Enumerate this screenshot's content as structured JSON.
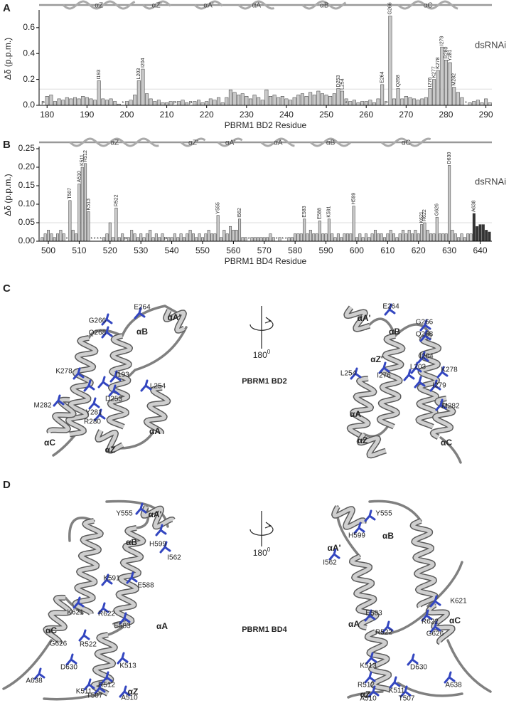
{
  "chart_data": [
    {
      "type": "bar",
      "panel": "A",
      "x_label": "PBRM1 BD2 Residue",
      "y_label": "Δδ (p.p.m.)",
      "x": [
        179,
        180,
        181,
        182,
        183,
        184,
        185,
        186,
        187,
        188,
        189,
        190,
        191,
        192,
        193,
        194,
        195,
        196,
        197,
        198,
        199,
        200,
        201,
        202,
        203,
        204,
        205,
        206,
        207,
        208,
        209,
        210,
        211,
        212,
        213,
        214,
        215,
        216,
        217,
        218,
        219,
        220,
        221,
        222,
        223,
        224,
        225,
        226,
        227,
        228,
        229,
        230,
        231,
        232,
        233,
        234,
        235,
        236,
        237,
        238,
        239,
        240,
        241,
        242,
        243,
        244,
        245,
        246,
        247,
        248,
        249,
        250,
        251,
        252,
        253,
        254,
        255,
        256,
        257,
        258,
        259,
        260,
        261,
        262,
        263,
        264,
        265,
        266,
        267,
        268,
        269,
        270,
        271,
        272,
        273,
        274,
        275,
        276,
        277,
        278,
        279,
        280,
        281,
        282,
        283,
        284,
        285,
        286,
        287,
        288,
        289,
        290,
        291
      ],
      "series": [
        {
          "name": "dsRNAi",
          "color": "#c8c8c8",
          "values": [
            0,
            0.07,
            0.08,
            0.03,
            0.05,
            0.04,
            0.06,
            0.05,
            0.06,
            0.05,
            0.07,
            0.06,
            0.05,
            0.04,
            0.19,
            0.05,
            0.04,
            0.05,
            0.03,
            0.01,
            0,
            0.03,
            0.04,
            0.08,
            0.19,
            0.28,
            0.09,
            0.05,
            0.03,
            0.04,
            0.02,
            0.02,
            0.03,
            0,
            0.03,
            0.04,
            0.02,
            0,
            0.03,
            0.04,
            0.02,
            0.03,
            0.05,
            0.04,
            0.06,
            0.02,
            0.06,
            0.12,
            0.1,
            0.08,
            0.09,
            0.07,
            0.05,
            0.08,
            0.06,
            0.04,
            0.12,
            0.07,
            0.08,
            0.06,
            0.07,
            0.05,
            0.04,
            0.06,
            0.08,
            0.09,
            0.07,
            0.1,
            0.08,
            0.11,
            0.09,
            0.08,
            0.07,
            0.09,
            0.13,
            0.11,
            0.05,
            0.03,
            0.04,
            0.02,
            0.03,
            0.03,
            0.04,
            0.02,
            0.05,
            0.16,
            0,
            0.69,
            0.05,
            0.13,
            0.05,
            0.07,
            0.06,
            0.05,
            0.04,
            0.05,
            0.06,
            0.13,
            0.2,
            0.27,
            0.45,
            0.35,
            0.33,
            0.14,
            0.1,
            0.06,
            0,
            0.02,
            0.03,
            0.04,
            0.02,
            0.05,
            0.02
          ]
        }
      ],
      "xlim": [
        178,
        291.5
      ],
      "xticks": [
        180,
        190,
        200,
        210,
        220,
        230,
        240,
        250,
        260,
        270,
        280,
        290
      ],
      "ylim": [
        0,
        0.72
      ],
      "yticks": [
        {
          "value": 0,
          "label": "0.0"
        },
        {
          "value": 0.2,
          "label": "0.2"
        },
        {
          "value": 0.4,
          "label": "0.4"
        },
        {
          "value": 0.6,
          "label": "0.6"
        }
      ],
      "threshold": 0.125,
      "annotations": [
        {
          "x": 193,
          "label": "I193"
        },
        {
          "x": 203,
          "label": "L203"
        },
        {
          "x": 204,
          "label": "I204"
        },
        {
          "x": 253,
          "label": "D253"
        },
        {
          "x": 254,
          "label": "L254"
        },
        {
          "x": 264,
          "label": "E264"
        },
        {
          "x": 266,
          "label": "G266"
        },
        {
          "x": 268,
          "label": "Q268"
        },
        {
          "x": 276,
          "label": "I276"
        },
        {
          "x": 277,
          "label": "K277"
        },
        {
          "x": 278,
          "label": "K278"
        },
        {
          "x": 279,
          "label": "I279"
        },
        {
          "x": 280,
          "label": "R280"
        },
        {
          "x": 281,
          "label": "Y281"
        },
        {
          "x": 282,
          "label": "M282"
        }
      ],
      "markers": [
        {
          "x": 179,
          "label": "P"
        },
        {
          "x": 199,
          "label": "*"
        },
        {
          "x": 212,
          "label": "P"
        },
        {
          "x": 216,
          "label": "P"
        },
        {
          "x": 255,
          "label": "*"
        },
        {
          "x": 265,
          "label": "P"
        },
        {
          "x": 285,
          "label": "*"
        }
      ],
      "helices": [
        {
          "label": "αZ",
          "start": 184,
          "end": 202
        },
        {
          "label": "αZ'",
          "start": 204,
          "end": 211
        },
        {
          "label": "αA'",
          "start": 217,
          "end": 224
        },
        {
          "label": "αA",
          "start": 228,
          "end": 237
        },
        {
          "label": "αB",
          "start": 244,
          "end": 255
        },
        {
          "label": "αC",
          "start": 268,
          "end": 283
        }
      ]
    },
    {
      "type": "bar",
      "panel": "B",
      "x_label": "PBRM1 BD4 Residue",
      "y_label": "Δδ (p.p.m.)",
      "x": [
        498,
        499,
        500,
        501,
        502,
        503,
        504,
        505,
        506,
        507,
        508,
        509,
        510,
        511,
        512,
        513,
        514,
        515,
        516,
        517,
        518,
        519,
        520,
        521,
        522,
        523,
        524,
        525,
        526,
        527,
        528,
        529,
        530,
        531,
        532,
        533,
        534,
        535,
        536,
        537,
        538,
        539,
        540,
        541,
        542,
        543,
        544,
        545,
        546,
        547,
        548,
        549,
        550,
        551,
        552,
        553,
        554,
        555,
        556,
        557,
        558,
        559,
        560,
        561,
        562,
        563,
        564,
        565,
        566,
        567,
        568,
        569,
        570,
        571,
        572,
        573,
        574,
        575,
        576,
        577,
        578,
        579,
        580,
        581,
        582,
        583,
        584,
        585,
        586,
        587,
        588,
        589,
        590,
        591,
        592,
        593,
        594,
        595,
        596,
        597,
        598,
        599,
        600,
        601,
        602,
        603,
        604,
        605,
        606,
        607,
        608,
        609,
        610,
        611,
        612,
        613,
        614,
        615,
        616,
        617,
        618,
        619,
        620,
        621,
        622,
        623,
        624,
        625,
        626,
        627,
        628,
        629,
        630,
        631,
        632,
        633,
        634,
        635,
        636,
        637,
        638,
        639,
        640,
        641,
        642,
        643
      ],
      "series": [
        {
          "name": "dsRNAi",
          "color": "#c8c8c8",
          "values": [
            0.01,
            0.02,
            0.03,
            0.02,
            0.01,
            0.02,
            0.03,
            0.02,
            0,
            0.11,
            0.03,
            0.02,
            0.155,
            0.2,
            0.21,
            0.08,
            0,
            0,
            0,
            0,
            0.01,
            0.02,
            0.05,
            0.01,
            0.09,
            0.01,
            0.02,
            0,
            0.01,
            0.03,
            0.02,
            0.01,
            0.02,
            0.01,
            0.02,
            0.03,
            0.01,
            0.02,
            0.01,
            0.02,
            0,
            0.01,
            0.01,
            0.02,
            0.01,
            0.02,
            0.01,
            0.02,
            0.03,
            0.02,
            0.01,
            0.02,
            0.01,
            0.02,
            0.03,
            0.02,
            0.02,
            0.07,
            0.01,
            0.03,
            0.02,
            0.04,
            0.03,
            0.03,
            0.06,
            0.01,
            0.01,
            0,
            0.01,
            0.01,
            0.01,
            0.01,
            0.01,
            0.01,
            0.02,
            0.01,
            0,
            0.01,
            0,
            0,
            0.01,
            0.01,
            0.02,
            0.02,
            0.02,
            0.06,
            0.02,
            0.03,
            0.02,
            0.02,
            0.055,
            0.02,
            0.02,
            0.06,
            0.02,
            0.01,
            0.02,
            0.01,
            0.02,
            0.02,
            0.02,
            0.095,
            0.01,
            0.02,
            0.01,
            0.02,
            0.01,
            0.02,
            0.03,
            0.02,
            0.02,
            0.01,
            0.02,
            0.03,
            0.02,
            0.01,
            0.02,
            0.03,
            0.02,
            0.03,
            0.02,
            0.03,
            0.02,
            0.045,
            0.05,
            0.03,
            0.02,
            0.02,
            0.065,
            0.02,
            0.02,
            0.02,
            0.205,
            0.03,
            0.02,
            0.01,
            0.02,
            0.01,
            0.02,
            0.02,
            0.075,
            0.04,
            0.045,
            0.045,
            0.03,
            0.025
          ]
        }
      ],
      "xlim": [
        497,
        643.8
      ],
      "xticks": [
        500,
        510,
        520,
        530,
        540,
        550,
        560,
        570,
        580,
        590,
        600,
        610,
        620,
        630,
        640
      ],
      "ylim": [
        0,
        0.25
      ],
      "yticks": [
        {
          "value": 0,
          "label": "0.00"
        },
        {
          "value": 0.05,
          "label": "0.05"
        },
        {
          "value": 0.1,
          "label": "0.10"
        },
        {
          "value": 0.15,
          "label": "0.15"
        },
        {
          "value": 0.2,
          "label": "0.20"
        },
        {
          "value": 0.25,
          "label": "0.25"
        }
      ],
      "threshold": 0.05,
      "highlight": {
        "from": 638,
        "to": 643,
        "color": "#333333"
      },
      "annotations": [
        {
          "x": 507,
          "label": "T507"
        },
        {
          "x": 510,
          "label": "A510"
        },
        {
          "x": 511,
          "label": "K511"
        },
        {
          "x": 512,
          "label": "R512"
        },
        {
          "x": 513,
          "label": "K513"
        },
        {
          "x": 522,
          "label": "R522"
        },
        {
          "x": 555,
          "label": "Y555"
        },
        {
          "x": 562,
          "label": "I562"
        },
        {
          "x": 583,
          "label": "E583"
        },
        {
          "x": 588,
          "label": "E588"
        },
        {
          "x": 591,
          "label": "K591"
        },
        {
          "x": 599,
          "label": "H599"
        },
        {
          "x": 621,
          "label": "K621"
        },
        {
          "x": 622,
          "label": "R622"
        },
        {
          "x": 626,
          "label": "G626"
        },
        {
          "x": 630,
          "label": "D630"
        },
        {
          "x": 638,
          "label": "A638"
        }
      ],
      "markers": [
        {
          "x": 506,
          "label": "*"
        },
        {
          "x": 514,
          "label": "*"
        },
        {
          "x": 515,
          "label": "*"
        },
        {
          "x": 516,
          "label": "*"
        },
        {
          "x": 517,
          "label": "*"
        },
        {
          "x": 525,
          "label": "P"
        },
        {
          "x": 538,
          "label": "P"
        },
        {
          "x": 565,
          "label": "*"
        },
        {
          "x": 574,
          "label": "*"
        },
        {
          "x": 576,
          "label": "*"
        },
        {
          "x": 577,
          "label": "*"
        }
      ],
      "helices": [
        {
          "label": "αZ",
          "start": 507,
          "end": 536
        },
        {
          "label": "αZ'",
          "start": 543,
          "end": 551
        },
        {
          "label": "αA'",
          "start": 555,
          "end": 563
        },
        {
          "label": "αA",
          "start": 569,
          "end": 580
        },
        {
          "label": "αB",
          "start": 585,
          "end": 598
        },
        {
          "label": "αC",
          "start": 608,
          "end": 624
        }
      ]
    }
  ],
  "structures": [
    {
      "panel": "C",
      "title": "PBRM1 BD2",
      "rotation": "180",
      "rotation_sup": "0",
      "left_labels": [
        "E264",
        "G266",
        "Q268",
        "αB",
        "αA'",
        "K278",
        "I193",
        "L254",
        "D253",
        "M282",
        "Y281",
        "R280",
        "αC",
        "αA",
        "αZ"
      ],
      "right_labels": [
        "αA'",
        "E264",
        "αB",
        "αZ'",
        "G266",
        "Q268",
        "I204",
        "L203",
        "K278",
        "L254",
        "I276",
        "I279",
        "M282",
        "αA",
        "αC",
        "αZ"
      ]
    },
    {
      "panel": "D",
      "title": "PBRM1 BD4",
      "rotation": "180",
      "rotation_sup": "0",
      "left_labels": [
        "Y555",
        "αA'",
        "αB",
        "H599",
        "I562",
        "K591",
        "E588",
        "K621",
        "R622",
        "αC",
        "E583",
        "αA",
        "G626",
        "R522",
        "D630",
        "K513",
        "R512",
        "K511",
        "αZ",
        "A638",
        "A510",
        "T507"
      ],
      "right_labels": [
        "Y555",
        "H599",
        "αB",
        "αA'",
        "I562",
        "K621",
        "αA",
        "E583",
        "R622",
        "αC",
        "R522",
        "G626",
        "D630",
        "K513",
        "R512",
        "αZ",
        "K511",
        "A638",
        "A510",
        "T507"
      ]
    }
  ]
}
